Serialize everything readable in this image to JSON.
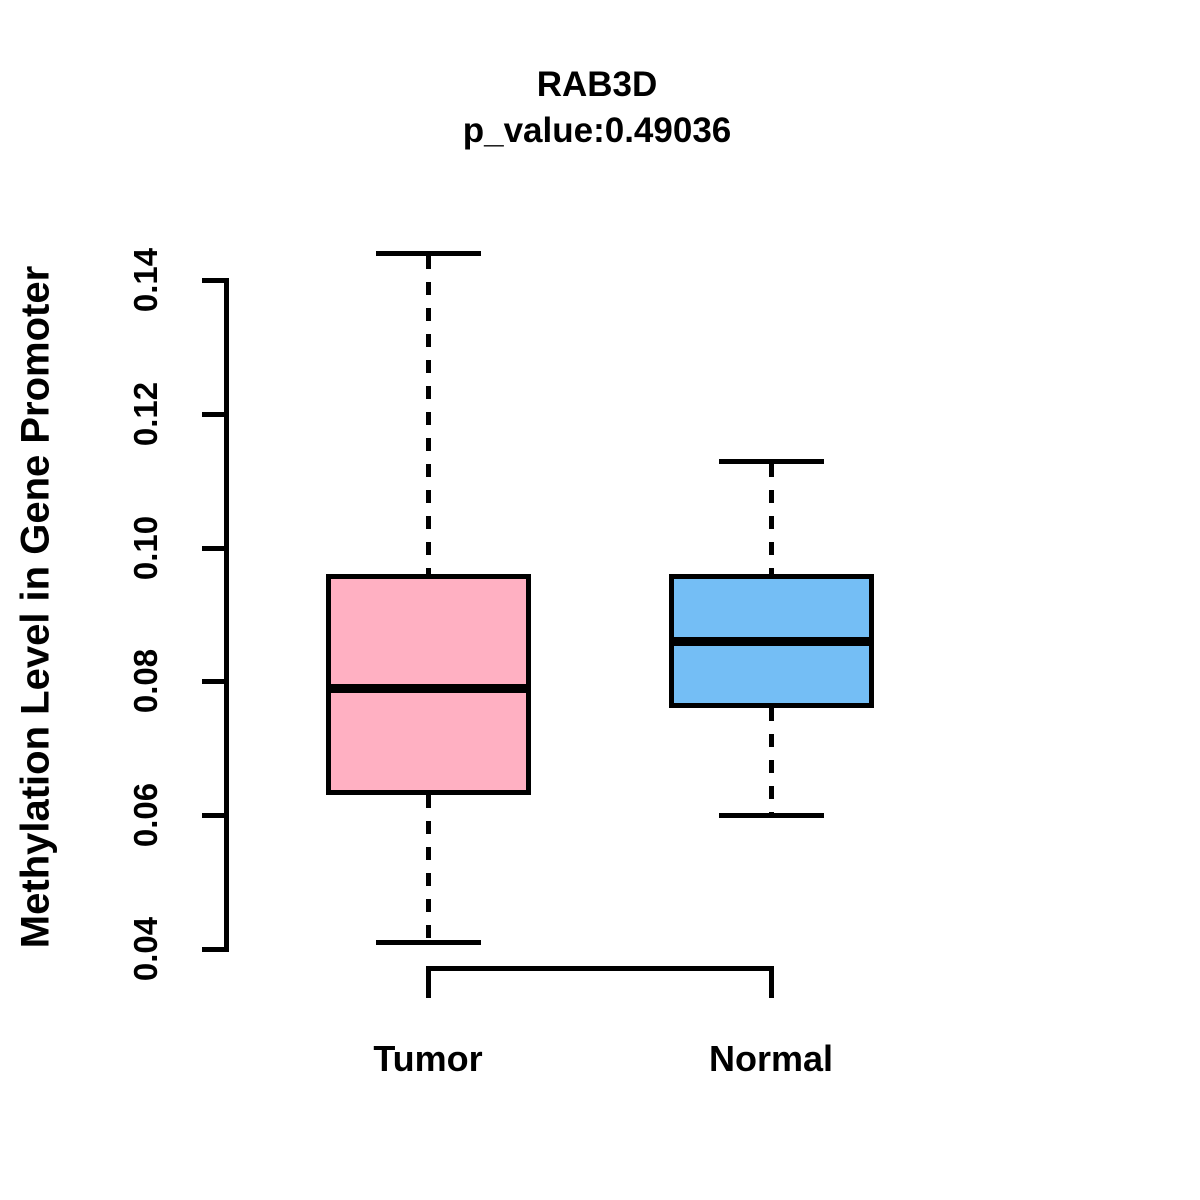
{
  "chart_data": {
    "type": "boxplot",
    "title": "RAB3D",
    "subtitle": "p_value:0.49036",
    "ylabel": "Methylation Level in Gene Promoter",
    "xlabel": "",
    "categories": [
      "Tumor",
      "Normal"
    ],
    "ylim": [
      0.04,
      0.14
    ],
    "yticks": [
      0.04,
      0.06,
      0.08,
      0.1,
      0.12,
      0.14
    ],
    "grid": false,
    "legend": "none",
    "series": [
      {
        "name": "Tumor",
        "color": "#FFB0C2",
        "whisker_low": 0.041,
        "q1": 0.063,
        "median": 0.079,
        "q3": 0.096,
        "whisker_high": 0.144
      },
      {
        "name": "Normal",
        "color": "#74BEF5",
        "whisker_low": 0.06,
        "q1": 0.076,
        "median": 0.086,
        "q3": 0.096,
        "whisker_high": 0.113
      }
    ]
  },
  "colors": {
    "line": "#000000",
    "background": "#FFFFFF"
  }
}
